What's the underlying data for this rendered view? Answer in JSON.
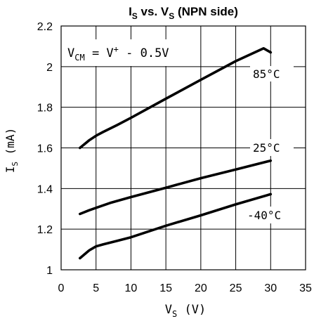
{
  "chart_data": {
    "type": "line",
    "title": {
      "main": "I",
      "main_sub": "S",
      "mid": " vs. V",
      "mid_sub": "S",
      "tail": " (NPN side)"
    },
    "xlabel": {
      "main": "V",
      "sub": "S",
      "tail": " (V)"
    },
    "ylabel": {
      "main": "I",
      "sub": "S",
      "tail": " (mA)"
    },
    "annotation": {
      "prefix": "V",
      "sub": "CM",
      "mid": " = V",
      "sup": "+",
      "tail": " - 0.5V"
    },
    "xlim": [
      0,
      35
    ],
    "ylim": [
      1,
      2.2
    ],
    "xticks": [
      "0",
      "5",
      "10",
      "15",
      "20",
      "25",
      "30",
      "35"
    ],
    "yticks": [
      "1",
      "1.2",
      "1.4",
      "1.6",
      "1.8",
      "2",
      "2.2"
    ],
    "grid": true,
    "series": [
      {
        "name": "85°C",
        "x": [
          2.7,
          4.0,
          5.0,
          6.0,
          8.0,
          10.0,
          15.0,
          20.0,
          25.0,
          29.0,
          30.0
        ],
        "y": [
          1.6,
          1.637,
          1.66,
          1.678,
          1.712,
          1.748,
          1.842,
          1.935,
          2.027,
          2.09,
          2.07
        ]
      },
      {
        "name": "25°C",
        "x": [
          2.7,
          4.0,
          5.0,
          7.0,
          10.0,
          15.0,
          20.0,
          25.0,
          30.0
        ],
        "y": [
          1.275,
          1.293,
          1.305,
          1.329,
          1.358,
          1.404,
          1.451,
          1.494,
          1.537
        ]
      },
      {
        "name": "-40°C",
        "x": [
          2.7,
          4.0,
          5.0,
          6.0,
          8.0,
          10.0,
          15.0,
          20.0,
          25.0,
          30.0
        ],
        "y": [
          1.057,
          1.095,
          1.115,
          1.125,
          1.142,
          1.16,
          1.217,
          1.268,
          1.322,
          1.372
        ]
      }
    ]
  }
}
